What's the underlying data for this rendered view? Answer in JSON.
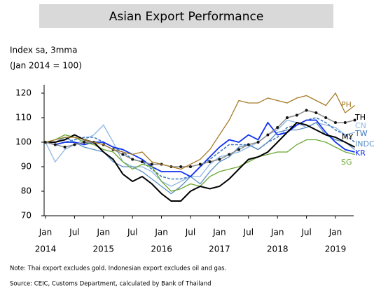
{
  "chart_data": {
    "type": "line",
    "title": "Asian Export Performance",
    "y_label_lines": [
      "Index sa, 3mma",
      "(Jan 2014 = 100)"
    ],
    "x": [
      "2014-01",
      "2014-03",
      "2014-05",
      "2014-07",
      "2014-09",
      "2014-11",
      "2015-01",
      "2015-03",
      "2015-05",
      "2015-07",
      "2015-09",
      "2015-11",
      "2016-01",
      "2016-03",
      "2016-05",
      "2016-07",
      "2016-09",
      "2016-11",
      "2017-01",
      "2017-03",
      "2017-05",
      "2017-07",
      "2017-09",
      "2017-11",
      "2018-01",
      "2018-03",
      "2018-05",
      "2018-07",
      "2018-09",
      "2018-11",
      "2019-01",
      "2019-03",
      "2019-05"
    ],
    "xticks": [
      {
        "value": "2014-01",
        "label": "Jan"
      },
      {
        "value": "2014-07",
        "label": "Jul"
      },
      {
        "value": "2015-01",
        "label": "Jan"
      },
      {
        "value": "2015-07",
        "label": "Jul"
      },
      {
        "value": "2016-01",
        "label": "Jan"
      },
      {
        "value": "2016-07",
        "label": "Jul"
      },
      {
        "value": "2017-01",
        "label": "Jan"
      },
      {
        "value": "2017-07",
        "label": "Jul"
      },
      {
        "value": "2018-01",
        "label": "Jan"
      },
      {
        "value": "2018-07",
        "label": "Jul"
      },
      {
        "value": "2019-01",
        "label": "Jan"
      }
    ],
    "year_labels": [
      {
        "value": "2014-01",
        "label": "2014"
      },
      {
        "value": "2015-01",
        "label": "2015"
      },
      {
        "value": "2016-01",
        "label": "2016"
      },
      {
        "value": "2017-01",
        "label": "2017"
      },
      {
        "value": "2018-01",
        "label": "2018"
      },
      {
        "value": "2019-01",
        "label": "2019"
      }
    ],
    "ylim": [
      70,
      120
    ],
    "yticks": [
      70,
      80,
      90,
      100,
      110,
      120
    ],
    "series": [
      {
        "name": "PH",
        "color": "#a67c2a",
        "values": [
          100,
          101,
          102,
          102,
          101,
          100,
          99,
          97,
          96,
          95,
          96,
          92,
          91,
          90,
          89,
          91,
          93,
          97,
          103,
          109,
          117,
          116,
          116,
          118,
          117,
          116,
          118,
          119,
          117,
          115,
          120,
          112,
          115
        ]
      },
      {
        "name": "TH",
        "color": "#8a8a8a",
        "values": [
          100,
          99,
          98,
          99,
          100,
          100,
          99,
          97,
          95,
          93,
          92,
          91,
          91,
          90,
          90,
          90,
          91,
          92,
          93,
          95,
          97,
          99,
          100,
          103,
          106,
          110,
          111,
          113,
          112,
          110,
          108,
          108,
          109
        ]
      },
      {
        "name": "CN",
        "color": "#8db8e3",
        "values": [
          100,
          92,
          97,
          99,
          101,
          103,
          107,
          100,
          92,
          90,
          90,
          88,
          84,
          82,
          84,
          86,
          86,
          91,
          94,
          95,
          96,
          98,
          100,
          103,
          105,
          109,
          108,
          106,
          108,
          107,
          106,
          103,
          104
        ]
      },
      {
        "name": "MY",
        "color": "#000000",
        "values": [
          100,
          100,
          101,
          103,
          101,
          100,
          96,
          93,
          87,
          84,
          86,
          83,
          79,
          76,
          76,
          80,
          82,
          81,
          82,
          85,
          89,
          93,
          94,
          96,
          100,
          104,
          108,
          107,
          105,
          103,
          102,
          100,
          98
        ]
      },
      {
        "name": "TW",
        "color": "#3f78c0",
        "values": [
          100,
          99,
          100,
          101,
          102,
          102,
          100,
          98,
          96,
          93,
          92,
          89,
          86,
          85,
          85,
          86,
          90,
          93,
          96,
          99,
          99,
          99,
          97,
          100,
          102,
          106,
          107,
          109,
          110,
          108,
          105,
          103,
          100
        ]
      },
      {
        "name": "INDC",
        "color": "#5a8fc4",
        "values": [
          100,
          100,
          102,
          100,
          98,
          97,
          96,
          92,
          90,
          90,
          88,
          85,
          82,
          79,
          82,
          86,
          83,
          88,
          92,
          94,
          98,
          99,
          97,
          100,
          104,
          105,
          105,
          106,
          108,
          103,
          101,
          100,
          97
        ]
      },
      {
        "name": "KR",
        "color": "#1030f0",
        "values": [
          100,
          99,
          100,
          100,
          99,
          100,
          100,
          98,
          97,
          95,
          93,
          90,
          88,
          88,
          88,
          86,
          90,
          94,
          98,
          101,
          100,
          103,
          101,
          108,
          103,
          104,
          107,
          109,
          109,
          104,
          100,
          97,
          96
        ]
      },
      {
        "name": "SG",
        "color": "#6aa832",
        "values": [
          100,
          101,
          103,
          102,
          100,
          99,
          97,
          96,
          92,
          89,
          91,
          90,
          84,
          80,
          81,
          83,
          82,
          86,
          88,
          89,
          90,
          92,
          94,
          95,
          96,
          96,
          99,
          101,
          101,
          100,
          98,
          96,
          95
        ]
      }
    ],
    "notes": [
      "Note: Thai export excludes gold. Indonesian export excludes oil and gas.",
      "Source: CEIC, Customs Department, calculated by Bank of Thailand"
    ]
  }
}
